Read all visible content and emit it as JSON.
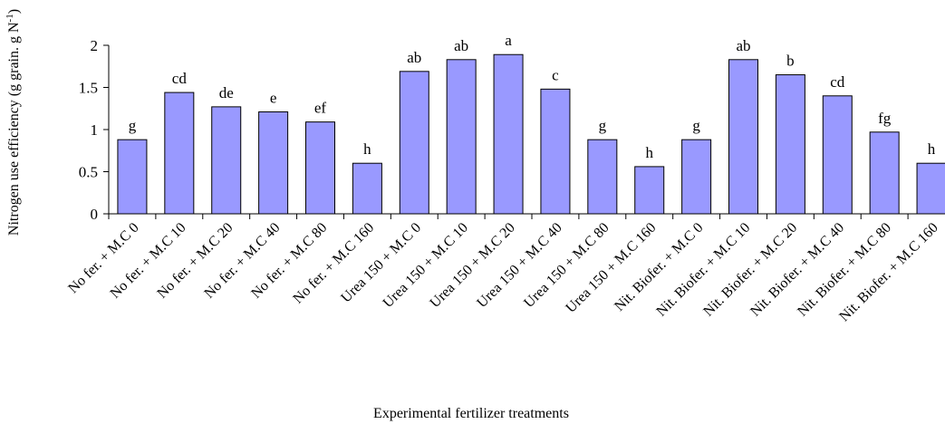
{
  "chart_data": {
    "type": "bar",
    "xlabel": "Experimental fertilizer treatments",
    "ylabel": "Nitrogen use efficiency (g grain. g N",
    "ylabel_superscript": "-1",
    "ylabel_suffix": ")",
    "ylim": [
      0,
      2
    ],
    "yticks": [
      0,
      0.5,
      1,
      1.5,
      2
    ],
    "ytick_labels": [
      "0",
      "0.5",
      "1",
      "1.5",
      "2"
    ],
    "grid": false,
    "bar_color": "#9999ff",
    "categories": [
      "No fer. + M.C 0",
      "No fer. + M.C 10",
      "No fer. + M.C 20",
      "No fer. + M.C 40",
      "No fer. + M.C 80",
      "No fer. + M.C 160",
      "Urea 150 + M.C 0",
      "Urea 150 + M.C 10",
      "Urea 150 + M.C 20",
      "Urea 150 + M.C 40",
      "Urea 150 + M.C 80",
      "Urea 150 + M.C 160",
      "Nit. Biofer. + M.C 0",
      "Nit. Biofer. + M.C 10",
      "Nit. Biofer. + M.C 20",
      "Nit. Biofer. + M.C 40",
      "Nit. Biofer. + M.C 80",
      "Nit. Biofer. + M.C 160"
    ],
    "values": [
      0.88,
      1.44,
      1.27,
      1.21,
      1.09,
      0.6,
      1.69,
      1.83,
      1.89,
      1.48,
      0.88,
      0.56,
      0.88,
      1.83,
      1.65,
      1.4,
      0.97,
      0.6
    ],
    "annotations": [
      "g",
      "cd",
      "de",
      "e",
      "ef",
      "h",
      "ab",
      "ab",
      "a",
      "c",
      "g",
      "h",
      "g",
      "ab",
      "b",
      "cd",
      "fg",
      "h"
    ]
  }
}
